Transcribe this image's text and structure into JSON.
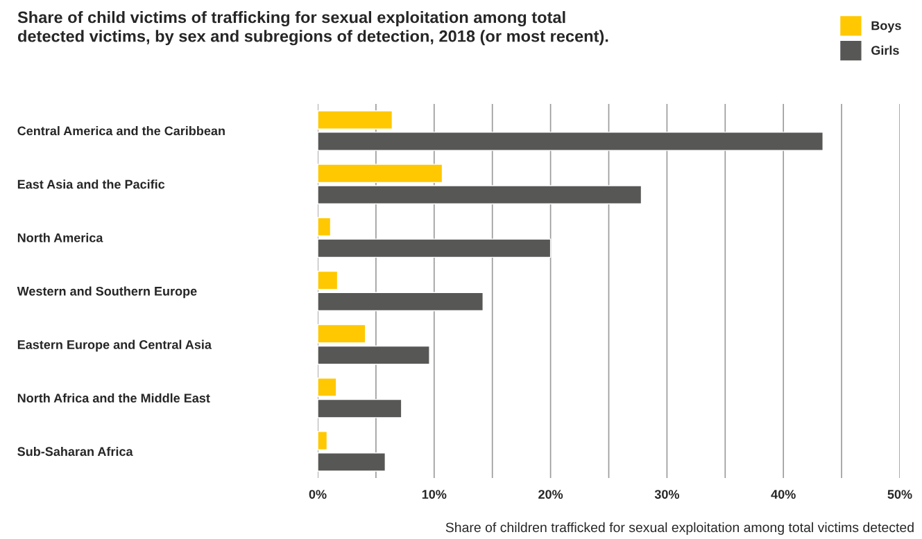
{
  "chart_data": {
    "type": "bar",
    "orientation": "horizontal",
    "title": "Share of child victims of trafficking for sexual exploitation among total\ndetected victims, by sex and subregions of detection, 2018 (or most recent).",
    "xlabel": "Share of children trafficked for sexual exploitation among total victims detected",
    "categories": [
      "Central America and the Caribbean",
      "East Asia and the Pacific",
      "North America",
      "Western and Southern Europe",
      "Eastern Europe and Central Asia",
      "North Africa and the Middle East",
      "Sub-Saharan Africa"
    ],
    "series": [
      {
        "name": "Boys",
        "color": "#ffc800",
        "values": [
          6.4,
          10.7,
          1.1,
          1.7,
          4.1,
          1.6,
          0.8
        ]
      },
      {
        "name": "Girls",
        "color": "#575756",
        "values": [
          43.4,
          27.8,
          20.0,
          14.2,
          9.6,
          7.2,
          5.8
        ]
      }
    ],
    "xlim": [
      0,
      50
    ],
    "xticks": [
      {
        "value": 0,
        "label": "0%"
      },
      {
        "value": 5,
        "label": null
      },
      {
        "value": 10,
        "label": "10%"
      },
      {
        "value": 15,
        "label": null
      },
      {
        "value": 20,
        "label": "20%"
      },
      {
        "value": 25,
        "label": null
      },
      {
        "value": 30,
        "label": "30%"
      },
      {
        "value": 35,
        "label": null
      },
      {
        "value": 40,
        "label": "40%"
      },
      {
        "value": 45,
        "label": null
      },
      {
        "value": 50,
        "label": "50%"
      }
    ],
    "grid": "x",
    "legend": "top right"
  }
}
